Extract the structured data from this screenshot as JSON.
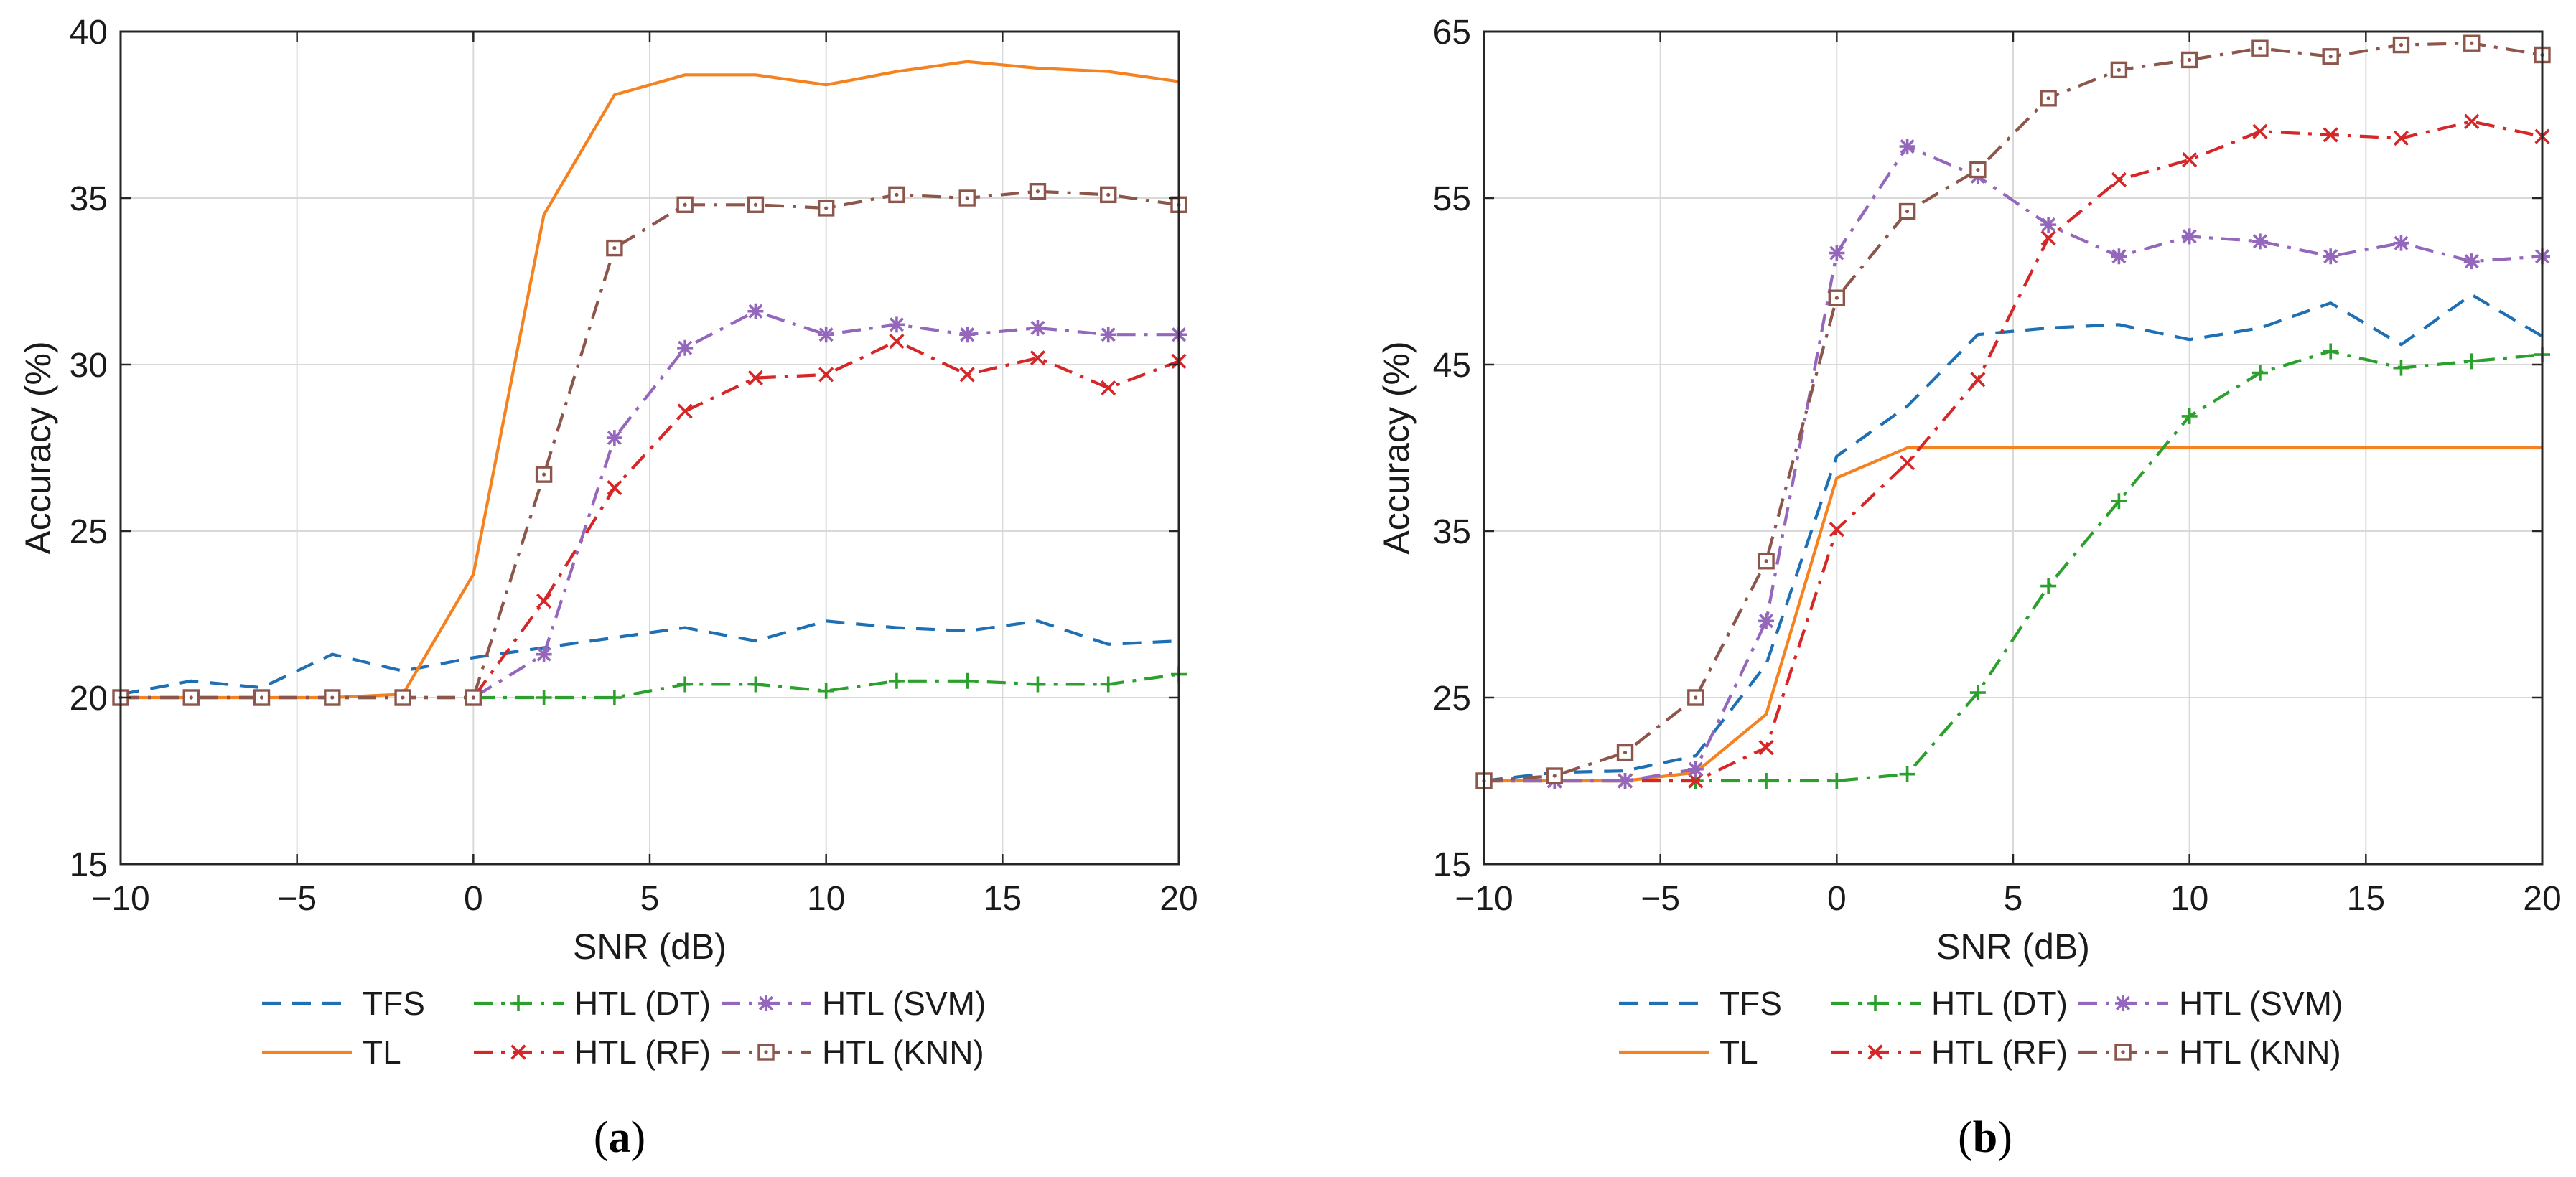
{
  "chart_data": [
    {
      "type": "line",
      "panel_label": "a",
      "xlabel": "SNR (dB)",
      "ylabel": "Accuracy (%)",
      "xlim": [
        -10,
        20
      ],
      "ylim": [
        15,
        40
      ],
      "xticks": [
        -10,
        -5,
        0,
        5,
        10,
        15,
        20
      ],
      "yticks": [
        15,
        20,
        25,
        30,
        35,
        40
      ],
      "grid": true,
      "legend_position": "below",
      "x": [
        -10,
        -8,
        -6,
        -4,
        -2,
        0,
        2,
        4,
        6,
        8,
        10,
        12,
        14,
        16,
        18,
        20
      ],
      "series": [
        {
          "name": "TFS",
          "color": "#1f6fb4",
          "style": "dashed",
          "marker": "none",
          "values": [
            20.1,
            20.5,
            20.3,
            21.3,
            20.8,
            21.2,
            21.5,
            21.8,
            22.1,
            21.7,
            22.3,
            22.1,
            22.0,
            22.3,
            21.6,
            21.7
          ]
        },
        {
          "name": "TL",
          "color": "#f58220",
          "style": "solid",
          "marker": "none",
          "values": [
            20.0,
            20.0,
            20.0,
            20.0,
            20.1,
            23.7,
            34.5,
            38.1,
            38.7,
            38.7,
            38.4,
            38.8,
            39.1,
            38.9,
            38.8,
            38.5
          ]
        },
        {
          "name": "HTL (DT)",
          "color": "#2ca02c",
          "style": "dashdot",
          "marker": "plus",
          "values": [
            20.0,
            20.0,
            20.0,
            20.0,
            20.0,
            20.0,
            20.0,
            20.0,
            20.4,
            20.4,
            20.2,
            20.5,
            20.5,
            20.4,
            20.4,
            20.7
          ]
        },
        {
          "name": "HTL (RF)",
          "color": "#d62728",
          "style": "dashdot",
          "marker": "x",
          "values": [
            20.0,
            20.0,
            20.0,
            20.0,
            20.0,
            20.0,
            22.9,
            26.3,
            28.6,
            29.6,
            29.7,
            30.7,
            29.7,
            30.2,
            29.3,
            30.1
          ]
        },
        {
          "name": "HTL (SVM)",
          "color": "#9467bd",
          "style": "dashdot",
          "marker": "asterisk",
          "values": [
            20.0,
            20.0,
            20.0,
            20.0,
            20.0,
            20.0,
            21.3,
            27.8,
            30.5,
            31.6,
            30.9,
            31.2,
            30.9,
            31.1,
            30.9,
            30.9
          ]
        },
        {
          "name": "HTL (KNN)",
          "color": "#8c564b",
          "style": "dashdot",
          "marker": "square",
          "values": [
            20.0,
            20.0,
            20.0,
            20.0,
            20.0,
            20.0,
            26.7,
            33.5,
            34.8,
            34.8,
            34.7,
            35.1,
            35.0,
            35.2,
            35.1,
            34.8
          ]
        }
      ]
    },
    {
      "type": "line",
      "panel_label": "b",
      "xlabel": "SNR (dB)",
      "ylabel": "Accuracy (%)",
      "xlim": [
        -10,
        20
      ],
      "ylim": [
        15,
        65
      ],
      "xticks": [
        -10,
        -5,
        0,
        5,
        10,
        15,
        20
      ],
      "yticks": [
        15,
        25,
        35,
        45,
        55,
        65
      ],
      "grid": true,
      "legend_position": "below",
      "x": [
        -10,
        -8,
        -6,
        -4,
        -2,
        0,
        2,
        4,
        6,
        8,
        10,
        12,
        14,
        16,
        18,
        20
      ],
      "series": [
        {
          "name": "TFS",
          "color": "#1f6fb4",
          "style": "dashed",
          "marker": "none",
          "values": [
            20.0,
            20.5,
            20.6,
            21.5,
            27.0,
            39.5,
            42.5,
            46.8,
            47.2,
            47.4,
            46.5,
            47.2,
            48.7,
            46.2,
            49.2,
            46.7
          ]
        },
        {
          "name": "TL",
          "color": "#f58220",
          "style": "solid",
          "marker": "none",
          "values": [
            20.0,
            20.0,
            20.0,
            20.5,
            24.0,
            38.2,
            40.0,
            40.0,
            40.0,
            40.0,
            40.0,
            40.0,
            40.0,
            40.0,
            40.0,
            40.0
          ]
        },
        {
          "name": "HTL (DT)",
          "color": "#2ca02c",
          "style": "dashdot",
          "marker": "plus",
          "values": [
            20.0,
            20.0,
            20.0,
            20.0,
            20.0,
            20.0,
            20.4,
            25.3,
            31.7,
            36.8,
            41.9,
            44.5,
            45.8,
            44.8,
            45.2,
            45.6
          ]
        },
        {
          "name": "HTL (RF)",
          "color": "#d62728",
          "style": "dashdot",
          "marker": "x",
          "values": [
            20.0,
            20.0,
            20.0,
            20.0,
            22.0,
            35.1,
            39.1,
            44.1,
            52.6,
            56.1,
            57.3,
            59.0,
            58.8,
            58.6,
            59.6,
            58.7
          ]
        },
        {
          "name": "HTL (SVM)",
          "color": "#9467bd",
          "style": "dashdot",
          "marker": "asterisk",
          "values": [
            20.0,
            20.0,
            20.0,
            20.7,
            29.6,
            51.7,
            58.1,
            56.3,
            53.4,
            51.5,
            52.7,
            52.4,
            51.5,
            52.3,
            51.2,
            51.5
          ]
        },
        {
          "name": "HTL (KNN)",
          "color": "#8c564b",
          "style": "dashdot",
          "marker": "square",
          "values": [
            20.0,
            20.3,
            21.7,
            25.0,
            33.2,
            49.0,
            54.2,
            56.7,
            61.0,
            62.7,
            63.3,
            64.0,
            63.5,
            64.2,
            64.3,
            63.6
          ]
        }
      ]
    }
  ]
}
